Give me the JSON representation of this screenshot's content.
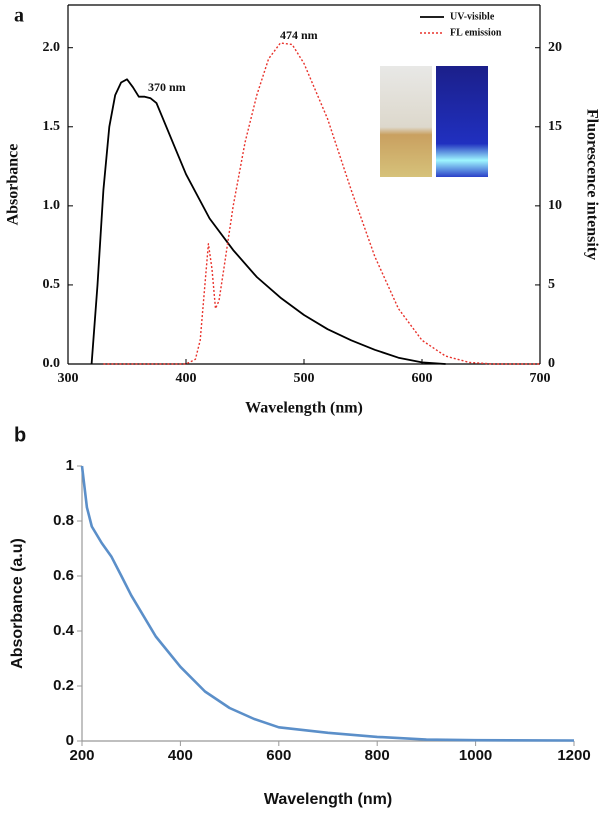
{
  "chart_data": [
    {
      "type": "line",
      "title": "a",
      "xlabel": "Wavelength (nm)",
      "ylabel": "Absorbance",
      "y2label": "Fluorescence intensity",
      "xlim": [
        300,
        700
      ],
      "xticks": [
        300,
        400,
        500,
        600,
        700
      ],
      "ylim": [
        0,
        2.27
      ],
      "yticks": [
        {
          "value": 0,
          "label": "0.0"
        },
        0.5,
        {
          "value": 1,
          "label": "1.0"
        },
        1.5,
        {
          "value": 2,
          "label": "2.0"
        }
      ],
      "y2lim": [
        0,
        22.7
      ],
      "y2ticks": [
        0,
        5,
        10,
        15,
        20
      ],
      "legend": "upper right",
      "annotations": [
        "370 nm",
        "474 nm"
      ],
      "series": [
        {
          "name": "UV-visible",
          "color": "#000000",
          "dash": "solid",
          "x": [
            320,
            325,
            330,
            335,
            340,
            345,
            350,
            355,
            360,
            365,
            370,
            375,
            380,
            390,
            400,
            420,
            440,
            460,
            480,
            500,
            520,
            540,
            560,
            580,
            600,
            620
          ],
          "values": [
            0,
            0.5,
            1.1,
            1.5,
            1.7,
            1.78,
            1.8,
            1.75,
            1.69,
            1.69,
            1.68,
            1.65,
            1.56,
            1.38,
            1.2,
            0.92,
            0.72,
            0.55,
            0.42,
            0.31,
            0.22,
            0.15,
            0.09,
            0.04,
            0.01,
            0
          ]
        },
        {
          "name": "FL emission",
          "color": "#e8322b",
          "dash": "dotted",
          "axis": "y2",
          "x": [
            330,
            400,
            408,
            412,
            416,
            419,
            422,
            425,
            428,
            432,
            440,
            450,
            460,
            470,
            480,
            490,
            500,
            520,
            540,
            560,
            580,
            600,
            620,
            640,
            660,
            700
          ],
          "values": [
            0,
            0,
            0.3,
            1.5,
            5,
            7.6,
            6,
            3.5,
            4,
            6,
            10,
            14,
            17,
            19.3,
            20.3,
            20.2,
            19,
            15.5,
            11,
            6.8,
            3.5,
            1.5,
            0.5,
            0.1,
            0,
            0
          ]
        }
      ]
    },
    {
      "type": "line",
      "title": "b",
      "xlabel": "Wavelength (nm)",
      "ylabel": "Absorbance (a.u)",
      "xlim": [
        200,
        1200
      ],
      "xticks": [
        200,
        400,
        600,
        800,
        1000,
        1200
      ],
      "ylim": [
        0,
        1
      ],
      "yticks": [
        0,
        0.2,
        0.4,
        0.6,
        0.8,
        1
      ],
      "series": [
        {
          "color": "#5b8fc9",
          "dash": "solid",
          "x": [
            200,
            210,
            220,
            240,
            260,
            280,
            300,
            350,
            400,
            450,
            500,
            550,
            600,
            700,
            800,
            900,
            1000,
            1200
          ],
          "values": [
            1.0,
            0.85,
            0.78,
            0.72,
            0.67,
            0.6,
            0.53,
            0.38,
            0.27,
            0.18,
            0.12,
            0.08,
            0.05,
            0.03,
            0.015,
            0.005,
            0.003,
            0.002
          ]
        }
      ]
    }
  ]
}
